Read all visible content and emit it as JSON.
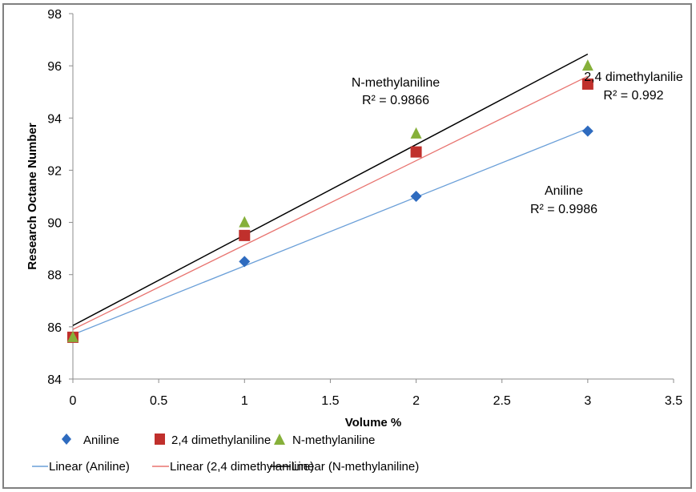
{
  "chart_data": {
    "type": "scatter",
    "title": "",
    "xlabel": "Volume %",
    "ylabel": "Research Octane Number",
    "xlim": [
      0,
      3.5
    ],
    "ylim": [
      84,
      98
    ],
    "xticks": [
      "0",
      "0.5",
      "1",
      "1.5",
      "2",
      "2.5",
      "3",
      "3.5"
    ],
    "yticks": [
      "84",
      "86",
      "88",
      "90",
      "92",
      "94",
      "96",
      "98"
    ],
    "grid": false,
    "legend_position": "bottom",
    "series": [
      {
        "name": "Aniline",
        "marker": "diamond",
        "color": "#2E6BBF",
        "x": [
          0,
          1,
          2,
          3
        ],
        "y": [
          85.6,
          88.5,
          91.0,
          93.5
        ],
        "trendline": {
          "label": "Linear (Aniline)",
          "color": "#6A9FD8",
          "start": 85.7,
          "end": 93.6
        }
      },
      {
        "name": "2,4 dimethylaniline",
        "marker": "square",
        "color": "#C0302C",
        "x": [
          0,
          1,
          2,
          3
        ],
        "y": [
          85.6,
          89.5,
          92.7,
          95.3
        ],
        "trendline": {
          "label": "Linear (2,4 dimethylaniline)",
          "color": "#E8736F",
          "start": 85.9,
          "end": 95.6
        }
      },
      {
        "name": "N-methylaniline",
        "marker": "triangle",
        "color": "#86B03A",
        "x": [
          0,
          1,
          2,
          3
        ],
        "y": [
          85.6,
          90.0,
          93.4,
          96.0
        ],
        "trendline": {
          "label": "Linear (N-methylaniline)",
          "color": "#000000",
          "start": 86.05,
          "end": 96.45
        }
      }
    ],
    "annotations": [
      {
        "series": "N-methylaniline",
        "name": "N-methylaniline",
        "r2": "R² = 0.9866"
      },
      {
        "series": "2,4 dimethylaniline",
        "name": "2,4 dimethylanilie",
        "r2": "R² = 0.992"
      },
      {
        "series": "Aniline",
        "name": "Aniline",
        "r2": "R² = 0.9986"
      }
    ]
  }
}
